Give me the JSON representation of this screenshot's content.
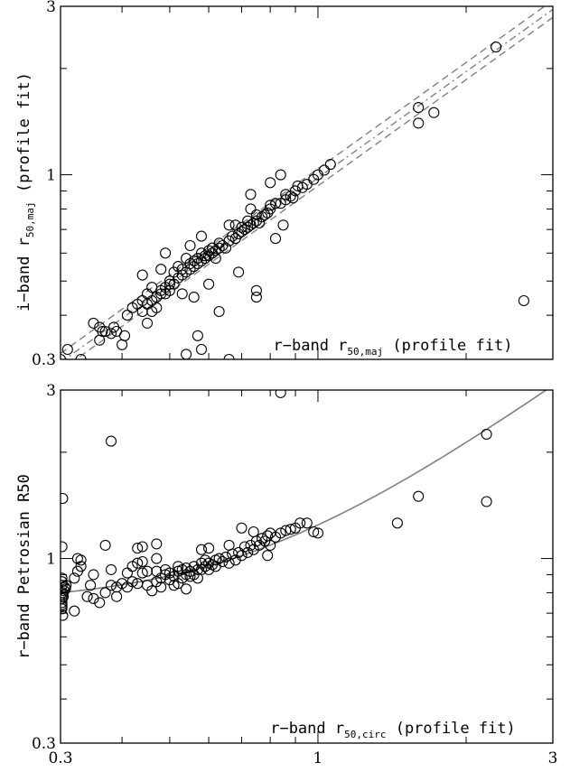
{
  "chart_data": [
    {
      "type": "scatter",
      "id": "top",
      "xlabel_prefix": "r−band r",
      "xlabel_sub": "50,maj",
      "xlabel_suffix": " (profile fit)",
      "ylabel_prefix": "i−band r",
      "ylabel_sub": "50,maj",
      "ylabel_suffix": " (profile fit)",
      "x_scale": "log",
      "y_scale": "log",
      "xlim": [
        0.3,
        3
      ],
      "ylim": [
        0.3,
        3
      ],
      "y_tick_labels": [
        {
          "value": 0.3,
          "label": "0.3"
        },
        {
          "value": 1,
          "label": "1"
        },
        {
          "value": 3,
          "label": "3"
        }
      ],
      "lines": [
        {
          "style": "dashed",
          "slope": 1,
          "intercept_factor": 0.93
        },
        {
          "style": "dashed",
          "slope": 1,
          "intercept_factor": 1.04
        },
        {
          "style": "dashdot",
          "slope": 1,
          "intercept_factor": 0.98
        }
      ],
      "points": [
        [
          0.3,
          0.3
        ],
        [
          0.31,
          0.32
        ],
        [
          0.31,
          0.29
        ],
        [
          0.33,
          0.3
        ],
        [
          0.34,
          0.29
        ],
        [
          0.36,
          0.37
        ],
        [
          0.365,
          0.36
        ],
        [
          0.37,
          0.36
        ],
        [
          0.38,
          0.355
        ],
        [
          0.385,
          0.37
        ],
        [
          0.39,
          0.36
        ],
        [
          0.4,
          0.33
        ],
        [
          0.41,
          0.4
        ],
        [
          0.405,
          0.35
        ],
        [
          0.42,
          0.42
        ],
        [
          0.43,
          0.43
        ],
        [
          0.44,
          0.41
        ],
        [
          0.44,
          0.44
        ],
        [
          0.45,
          0.43
        ],
        [
          0.45,
          0.46
        ],
        [
          0.46,
          0.44
        ],
        [
          0.46,
          0.48
        ],
        [
          0.47,
          0.42
        ],
        [
          0.47,
          0.45
        ],
        [
          0.48,
          0.46
        ],
        [
          0.48,
          0.47
        ],
        [
          0.49,
          0.46
        ],
        [
          0.49,
          0.48
        ],
        [
          0.5,
          0.49
        ],
        [
          0.5,
          0.5
        ],
        [
          0.51,
          0.49
        ],
        [
          0.51,
          0.53
        ],
        [
          0.52,
          0.51
        ],
        [
          0.52,
          0.55
        ],
        [
          0.53,
          0.52
        ],
        [
          0.53,
          0.54
        ],
        [
          0.54,
          0.53
        ],
        [
          0.54,
          0.58
        ],
        [
          0.55,
          0.54
        ],
        [
          0.55,
          0.56
        ],
        [
          0.56,
          0.55
        ],
        [
          0.56,
          0.57
        ],
        [
          0.57,
          0.56
        ],
        [
          0.57,
          0.58
        ],
        [
          0.58,
          0.57
        ],
        [
          0.58,
          0.6
        ],
        [
          0.59,
          0.58
        ],
        [
          0.59,
          0.59
        ],
        [
          0.6,
          0.59
        ],
        [
          0.6,
          0.61
        ],
        [
          0.61,
          0.6
        ],
        [
          0.61,
          0.62
        ],
        [
          0.62,
          0.58
        ],
        [
          0.62,
          0.61
        ],
        [
          0.63,
          0.62
        ],
        [
          0.63,
          0.64
        ],
        [
          0.64,
          0.63
        ],
        [
          0.65,
          0.62
        ],
        [
          0.66,
          0.65
        ],
        [
          0.67,
          0.67
        ],
        [
          0.68,
          0.66
        ],
        [
          0.68,
          0.72
        ],
        [
          0.69,
          0.68
        ],
        [
          0.7,
          0.69
        ],
        [
          0.7,
          0.71
        ],
        [
          0.71,
          0.7
        ],
        [
          0.72,
          0.71
        ],
        [
          0.72,
          0.74
        ],
        [
          0.73,
          0.72
        ],
        [
          0.74,
          0.73
        ],
        [
          0.75,
          0.74
        ],
        [
          0.75,
          0.77
        ],
        [
          0.76,
          0.73
        ],
        [
          0.77,
          0.76
        ],
        [
          0.78,
          0.77
        ],
        [
          0.79,
          0.78
        ],
        [
          0.8,
          0.8
        ],
        [
          0.8,
          0.82
        ],
        [
          0.82,
          0.83
        ],
        [
          0.84,
          0.83
        ],
        [
          0.86,
          0.85
        ],
        [
          0.86,
          0.88
        ],
        [
          0.88,
          0.87
        ],
        [
          0.89,
          0.86
        ],
        [
          0.9,
          0.9
        ],
        [
          0.91,
          0.93
        ],
        [
          0.93,
          0.92
        ],
        [
          0.95,
          0.94
        ],
        [
          0.98,
          0.97
        ],
        [
          1.0,
          1.0
        ],
        [
          1.03,
          1.03
        ],
        [
          1.06,
          1.07
        ],
        [
          0.84,
          1.0
        ],
        [
          0.73,
          0.8
        ],
        [
          0.66,
          0.72
        ],
        [
          0.55,
          0.63
        ],
        [
          0.44,
          0.52
        ],
        [
          0.49,
          0.6
        ],
        [
          0.58,
          0.67
        ],
        [
          0.73,
          0.88
        ],
        [
          0.8,
          0.95
        ],
        [
          0.48,
          0.54
        ],
        [
          0.56,
          0.45
        ],
        [
          0.6,
          0.49
        ],
        [
          0.63,
          0.41
        ],
        [
          0.53,
          0.46
        ],
        [
          0.5,
          0.47
        ],
        [
          0.46,
          0.41
        ],
        [
          0.36,
          0.34
        ],
        [
          0.35,
          0.38
        ],
        [
          0.85,
          0.72
        ],
        [
          0.82,
          0.66
        ],
        [
          0.75,
          0.45
        ],
        [
          0.75,
          0.47
        ],
        [
          0.58,
          0.32
        ],
        [
          0.57,
          0.35
        ],
        [
          0.66,
          0.3
        ],
        [
          0.54,
          0.31
        ],
        [
          0.45,
          0.38
        ],
        [
          0.69,
          0.53
        ],
        [
          1.6,
          1.4
        ],
        [
          1.6,
          1.55
        ],
        [
          1.72,
          1.5
        ],
        [
          2.3,
          2.3
        ],
        [
          2.62,
          0.44
        ]
      ]
    },
    {
      "type": "scatter",
      "id": "bottom",
      "xlabel_prefix": "r−band r",
      "xlabel_sub": "50,circ",
      "xlabel_suffix": " (profile fit)",
      "ylabel": "r−band Petrosian R50",
      "x_scale": "log",
      "y_scale": "log",
      "xlim": [
        0.3,
        3
      ],
      "ylim": [
        0.3,
        3
      ],
      "x_tick_labels": [
        {
          "value": 0.3,
          "label": "0.3"
        },
        {
          "value": 1,
          "label": "1"
        },
        {
          "value": 3,
          "label": "3"
        }
      ],
      "y_tick_labels": [
        {
          "value": 0.3,
          "label": "0.3"
        },
        {
          "value": 1,
          "label": "1"
        },
        {
          "value": 3,
          "label": "3"
        }
      ],
      "curve": {
        "style": "solid",
        "formula": "y = sqrt(x^2 + 0.55)"
      },
      "points": [
        [
          0.302,
          0.72
        ],
        [
          0.302,
          0.73
        ],
        [
          0.302,
          0.74
        ],
        [
          0.302,
          0.75
        ],
        [
          0.302,
          0.77
        ],
        [
          0.303,
          0.79
        ],
        [
          0.303,
          0.8
        ],
        [
          0.304,
          0.78
        ],
        [
          0.305,
          0.81
        ],
        [
          0.306,
          0.83
        ],
        [
          0.307,
          0.82
        ],
        [
          0.308,
          0.84
        ],
        [
          0.302,
          0.84
        ],
        [
          0.302,
          0.86
        ],
        [
          0.302,
          0.88
        ],
        [
          0.303,
          0.69
        ],
        [
          0.302,
          1.08
        ],
        [
          0.303,
          1.48
        ],
        [
          0.32,
          0.71
        ],
        [
          0.32,
          0.88
        ],
        [
          0.325,
          0.92
        ],
        [
          0.33,
          0.95
        ],
        [
          0.325,
          1.0
        ],
        [
          0.33,
          0.99
        ],
        [
          0.34,
          0.78
        ],
        [
          0.345,
          0.84
        ],
        [
          0.35,
          0.9
        ],
        [
          0.35,
          0.77
        ],
        [
          0.36,
          0.75
        ],
        [
          0.37,
          0.8
        ],
        [
          0.38,
          0.84
        ],
        [
          0.38,
          0.93
        ],
        [
          0.37,
          1.09
        ],
        [
          0.38,
          2.15
        ],
        [
          0.39,
          0.78
        ],
        [
          0.39,
          0.83
        ],
        [
          0.4,
          0.85
        ],
        [
          0.41,
          0.83
        ],
        [
          0.41,
          0.91
        ],
        [
          0.42,
          0.86
        ],
        [
          0.42,
          0.95
        ],
        [
          0.43,
          0.85
        ],
        [
          0.43,
          0.97
        ],
        [
          0.44,
          0.91
        ],
        [
          0.44,
          0.98
        ],
        [
          0.45,
          0.92
        ],
        [
          0.45,
          0.84
        ],
        [
          0.46,
          0.81
        ],
        [
          0.47,
          0.86
        ],
        [
          0.47,
          0.92
        ],
        [
          0.48,
          0.88
        ],
        [
          0.48,
          0.83
        ],
        [
          0.49,
          0.9
        ],
        [
          0.49,
          0.93
        ],
        [
          0.5,
          0.87
        ],
        [
          0.5,
          0.91
        ],
        [
          0.51,
          0.84
        ],
        [
          0.51,
          0.89
        ],
        [
          0.52,
          0.92
        ],
        [
          0.52,
          0.95
        ],
        [
          0.53,
          0.88
        ],
        [
          0.53,
          0.93
        ],
        [
          0.54,
          0.9
        ],
        [
          0.54,
          0.94
        ],
        [
          0.55,
          0.89
        ],
        [
          0.55,
          0.92
        ],
        [
          0.56,
          0.9
        ],
        [
          0.56,
          0.95
        ],
        [
          0.57,
          0.88
        ],
        [
          0.57,
          0.93
        ],
        [
          0.58,
          0.93
        ],
        [
          0.58,
          0.97
        ],
        [
          0.59,
          0.95
        ],
        [
          0.59,
          0.99
        ],
        [
          0.6,
          0.93
        ],
        [
          0.6,
          0.97
        ],
        [
          0.61,
          0.96
        ],
        [
          0.62,
          0.99
        ],
        [
          0.62,
          0.95
        ],
        [
          0.63,
          1.0
        ],
        [
          0.64,
          0.98
        ],
        [
          0.65,
          1.01
        ],
        [
          0.66,
          0.97
        ],
        [
          0.67,
          1.03
        ],
        [
          0.68,
          0.99
        ],
        [
          0.69,
          1.04
        ],
        [
          0.7,
          1.02
        ],
        [
          0.71,
          1.08
        ],
        [
          0.72,
          1.04
        ],
        [
          0.73,
          1.09
        ],
        [
          0.74,
          1.06
        ],
        [
          0.75,
          1.12
        ],
        [
          0.76,
          1.09
        ],
        [
          0.77,
          1.14
        ],
        [
          0.78,
          1.12
        ],
        [
          0.79,
          1.16
        ],
        [
          0.8,
          1.18
        ],
        [
          0.82,
          1.15
        ],
        [
          0.84,
          1.18
        ],
        [
          0.86,
          1.2
        ],
        [
          0.88,
          1.21
        ],
        [
          0.9,
          1.22
        ],
        [
          0.92,
          1.26
        ],
        [
          0.95,
          1.26
        ],
        [
          0.98,
          1.19
        ],
        [
          1.0,
          1.18
        ],
        [
          0.74,
          1.19
        ],
        [
          0.7,
          1.22
        ],
        [
          0.66,
          1.09
        ],
        [
          0.6,
          1.07
        ],
        [
          0.52,
          0.85
        ],
        [
          0.54,
          0.82
        ],
        [
          0.47,
          1.0
        ],
        [
          0.44,
          1.08
        ],
        [
          0.47,
          1.1
        ],
        [
          0.43,
          1.07
        ],
        [
          0.58,
          1.06
        ],
        [
          0.79,
          1.02
        ],
        [
          0.8,
          1.09
        ],
        [
          0.84,
          2.95
        ],
        [
          1.45,
          1.26
        ],
        [
          1.6,
          1.5
        ],
        [
          2.2,
          2.25
        ],
        [
          2.2,
          1.45
        ]
      ]
    }
  ]
}
